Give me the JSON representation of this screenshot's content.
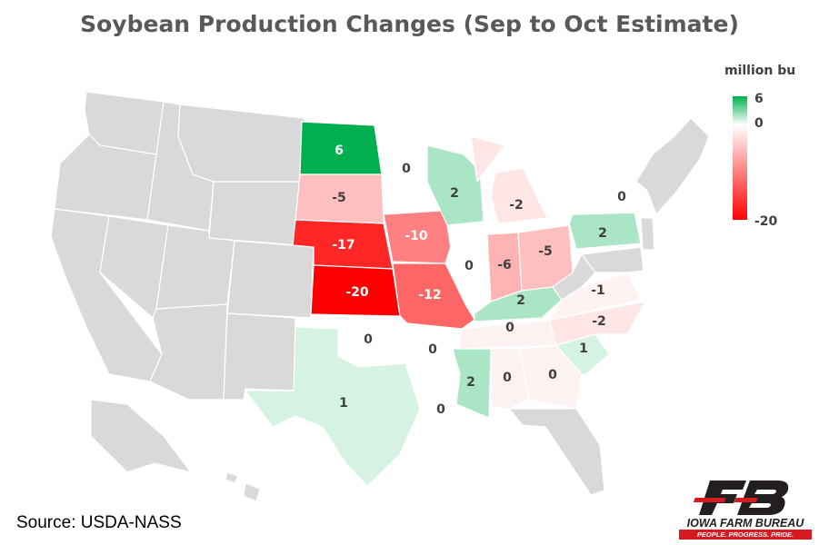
{
  "title": "Soybean Production Changes (Sep to Oct Estimate)",
  "legend": {
    "unit": "million bu",
    "max_label": "6",
    "mid_label": "0",
    "min_label": "-20",
    "colors": {
      "high": "#00b050",
      "mid": "#ffffff",
      "low": "#ff0000"
    }
  },
  "source": "Source: USDA-NASS",
  "logo": {
    "name": "IOWA FARM BUREAU",
    "tagline": "PEOPLE. PROGRESS. PRIDE."
  },
  "no_data_color": "#d9d9d9",
  "states": [
    {
      "id": "ND",
      "label": "6",
      "value": 6
    },
    {
      "id": "SD",
      "label": "-5",
      "value": -5
    },
    {
      "id": "NE",
      "label": "-17",
      "value": -17
    },
    {
      "id": "KS",
      "label": "-20",
      "value": -20
    },
    {
      "id": "MN",
      "label": "0",
      "value": 0
    },
    {
      "id": "IA",
      "label": "-10",
      "value": -10
    },
    {
      "id": "MO",
      "label": "-12",
      "value": -12
    },
    {
      "id": "WI",
      "label": "2",
      "value": 2
    },
    {
      "id": "IL",
      "label": "0",
      "value": 0
    },
    {
      "id": "MI",
      "label": "-2",
      "value": -2
    },
    {
      "id": "IN",
      "label": "-6",
      "value": -6
    },
    {
      "id": "OH",
      "label": "-5",
      "value": -5
    },
    {
      "id": "KY",
      "label": "2",
      "value": 2
    },
    {
      "id": "TN",
      "label": "0",
      "value": 0
    },
    {
      "id": "PA",
      "label": "2",
      "value": 2
    },
    {
      "id": "NY",
      "label": "0",
      "value": 0
    },
    {
      "id": "VA",
      "label": "-1",
      "value": -1
    },
    {
      "id": "NC",
      "label": "-2",
      "value": -2
    },
    {
      "id": "SC",
      "label": "1",
      "value": 1
    },
    {
      "id": "GA",
      "label": "0",
      "value": 0
    },
    {
      "id": "AL",
      "label": "0",
      "value": 0
    },
    {
      "id": "MS",
      "label": "2",
      "value": 2
    },
    {
      "id": "LA",
      "label": "0",
      "value": 0
    },
    {
      "id": "AR",
      "label": "0",
      "value": 0
    },
    {
      "id": "OK",
      "label": "0",
      "value": 0
    },
    {
      "id": "TX",
      "label": "1",
      "value": 1
    }
  ]
}
